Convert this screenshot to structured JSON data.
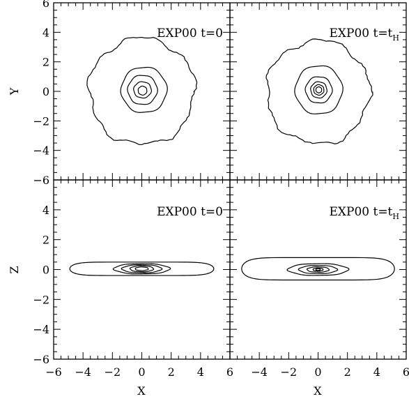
{
  "chart_data": [
    {
      "type": "contour",
      "label": "EXP00 t=0",
      "xlabel": "",
      "ylabel": "Y",
      "xlim": [
        -6,
        6
      ],
      "ylim": [
        -6,
        6
      ],
      "xticks": [
        -6,
        -4,
        -2,
        0,
        2,
        4,
        6
      ],
      "yticks": [
        -6,
        -4,
        -2,
        0,
        2,
        4,
        6
      ],
      "contours": [
        {
          "rx": 3.6,
          "ry": 3.6,
          "cx": 0,
          "cy": 0,
          "irregular": true
        },
        {
          "rx": 1.55,
          "ry": 1.55,
          "cx": 0.15,
          "cy": 0.1
        },
        {
          "rx": 1.0,
          "ry": 1.0,
          "cx": 0.05,
          "cy": 0.1
        },
        {
          "rx": 0.6,
          "ry": 0.55,
          "cx": 0.05,
          "cy": 0.1
        },
        {
          "rx": 0.3,
          "ry": 0.3,
          "cx": 0.05,
          "cy": 0.05
        }
      ]
    },
    {
      "type": "contour",
      "label_main": "EXP00 t=t",
      "label_sub": "H",
      "xlabel": "",
      "ylabel": "",
      "xlim": [
        -6,
        6
      ],
      "ylim": [
        -6,
        6
      ],
      "xticks": [
        -6,
        -4,
        -2,
        0,
        2,
        4,
        6
      ],
      "yticks": [
        -6,
        -4,
        -2,
        0,
        2,
        4,
        6
      ],
      "contours": [
        {
          "rx": 3.5,
          "ry": 3.5,
          "cx": 0,
          "cy": -0.05,
          "irregular": true
        },
        {
          "rx": 1.6,
          "ry": 1.65,
          "cx": 0.05,
          "cy": 0.1
        },
        {
          "rx": 0.9,
          "ry": 0.9,
          "cx": 0.05,
          "cy": 0.1
        },
        {
          "rx": 0.55,
          "ry": 0.55,
          "cx": 0.05,
          "cy": 0.1
        },
        {
          "rx": 0.35,
          "ry": 0.35,
          "cx": 0.05,
          "cy": 0.1
        },
        {
          "rx": 0.2,
          "ry": 0.2,
          "cx": 0.05,
          "cy": 0.1
        }
      ]
    },
    {
      "type": "contour",
      "label": "EXP00 t=0",
      "xlabel": "X",
      "ylabel": "Z",
      "xlim": [
        -6,
        6
      ],
      "ylim": [
        -6,
        6
      ],
      "xticks": [
        -6,
        -4,
        -2,
        0,
        2,
        4,
        6
      ],
      "yticks": [
        -6,
        -4,
        -2,
        0,
        2,
        4,
        6
      ],
      "contours": [
        {
          "rx": 4.9,
          "ry": 0.45,
          "cx": 0,
          "cy": 0.05,
          "flat": true
        },
        {
          "rx": 1.9,
          "ry": 0.35,
          "cx": 0,
          "cy": 0.05
        },
        {
          "rx": 1.35,
          "ry": 0.27,
          "cx": 0,
          "cy": 0.05
        },
        {
          "rx": 0.8,
          "ry": 0.2,
          "cx": 0,
          "cy": 0.05
        },
        {
          "rx": 0.45,
          "ry": 0.12,
          "cx": 0,
          "cy": 0.05
        }
      ]
    },
    {
      "type": "contour",
      "label_main": "EXP00 t=t",
      "label_sub": "H",
      "xlabel": "X",
      "ylabel": "",
      "xlim": [
        -6,
        6
      ],
      "ylim": [
        -6,
        6
      ],
      "xticks": [
        -6,
        -4,
        -2,
        0,
        2,
        4,
        6
      ],
      "yticks": [
        -6,
        -4,
        -2,
        0,
        2,
        4,
        6
      ],
      "contours": [
        {
          "rx": 5.2,
          "ry": 0.75,
          "cx": 0,
          "cy": 0.05,
          "flat": true
        },
        {
          "rx": 2.05,
          "ry": 0.4,
          "cx": 0,
          "cy": 0.0
        },
        {
          "rx": 1.3,
          "ry": 0.28,
          "cx": 0,
          "cy": 0.0
        },
        {
          "rx": 0.75,
          "ry": 0.18,
          "cx": 0,
          "cy": 0.0
        },
        {
          "rx": 0.35,
          "ry": 0.1,
          "cx": 0,
          "cy": 0.0
        },
        {
          "rx": 0.15,
          "ry": 0.06,
          "cx": 0,
          "cy": 0.0
        }
      ]
    }
  ]
}
